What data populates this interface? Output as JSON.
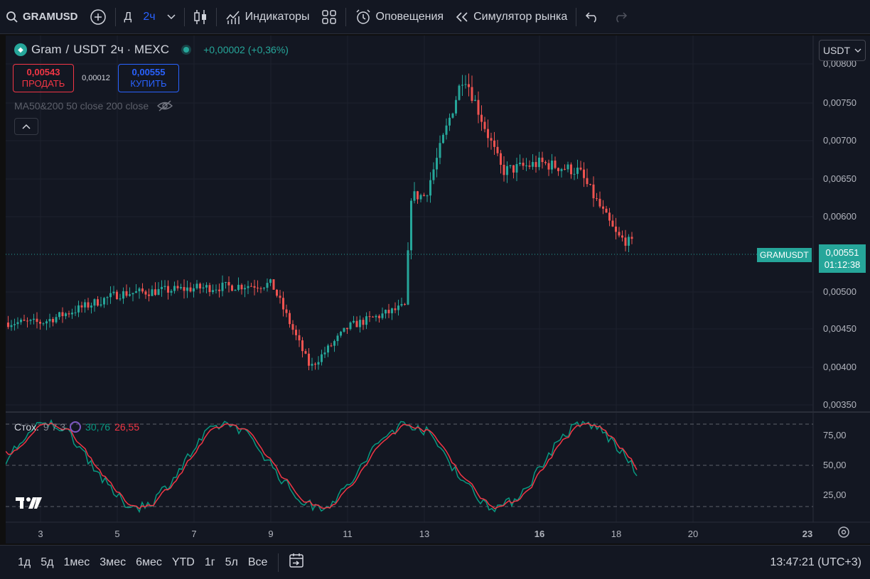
{
  "toolbar": {
    "symbol": "GRAMUSD",
    "period_label": "Д",
    "interval": "2ч",
    "indicators": "Индикаторы",
    "alerts": "Оповещения",
    "replay": "Симулятор рынка"
  },
  "legend": {
    "base": "Gram",
    "quote": "USDT",
    "meta": "2ч · MEXC",
    "change": "+0,00002 (+0,36%)"
  },
  "trade": {
    "sell_price": "0,00543",
    "sell_label": "ПРОДАТЬ",
    "spread": "0,00012",
    "buy_price": "0,00555",
    "buy_label": "КУПИТЬ"
  },
  "ma_label": "MA50&200 50 close 200 close",
  "currency_button": "USDT",
  "price_tag": {
    "symbol": "GRAMUSDT",
    "price": "0,00551",
    "countdown": "01:12:38"
  },
  "price_axis": [
    "0,00800",
    "0,00750",
    "0,00700",
    "0,00650",
    "0,00600",
    "0,00500",
    "0,00450",
    "0,00400",
    "0,00350"
  ],
  "stoch": {
    "name": "Стох.",
    "params": "9 7 3",
    "k": "30,76",
    "d": "26,55",
    "axis": [
      "75,00",
      "50,00",
      "25,00"
    ]
  },
  "time_axis": [
    "3",
    "5",
    "7",
    "9",
    "11",
    "13",
    "16",
    "18",
    "20",
    "23"
  ],
  "ranges": [
    "1д",
    "5д",
    "1мес",
    "3мес",
    "6мес",
    "YTD",
    "1г",
    "5л",
    "Все"
  ],
  "clock": "13:47:21 (UTC+3)",
  "colors": {
    "up": "#26a69a",
    "down": "#ef5350",
    "k_line": "#089981",
    "d_line": "#f23645",
    "bg": "#131722"
  },
  "chart_data": {
    "type": "candlestick",
    "ylim": [
      0.0035,
      0.0081
    ],
    "last": 0.00551,
    "closes_by_day": [
      {
        "x": "3",
        "close": 0.00455
      },
      {
        "x": "5",
        "close": 0.0049
      },
      {
        "x": "7",
        "close": 0.00497
      },
      {
        "x": "9",
        "close": 0.00502
      },
      {
        "x": "10",
        "close": 0.004
      },
      {
        "x": "11",
        "close": 0.0045
      },
      {
        "x": "12.5",
        "close": 0.00475
      },
      {
        "x": "12.6",
        "close": 0.0061
      },
      {
        "x": "13",
        "close": 0.0061
      },
      {
        "x": "14",
        "close": 0.0076
      },
      {
        "x": "15",
        "close": 0.0064
      },
      {
        "x": "16",
        "close": 0.0065
      },
      {
        "x": "17",
        "close": 0.0064
      },
      {
        "x": "18",
        "close": 0.0056
      },
      {
        "x": "18.4",
        "close": 0.00551
      }
    ],
    "stoch_ylim": [
      0,
      100
    ],
    "stoch_bands": [
      80,
      50,
      20
    ]
  }
}
